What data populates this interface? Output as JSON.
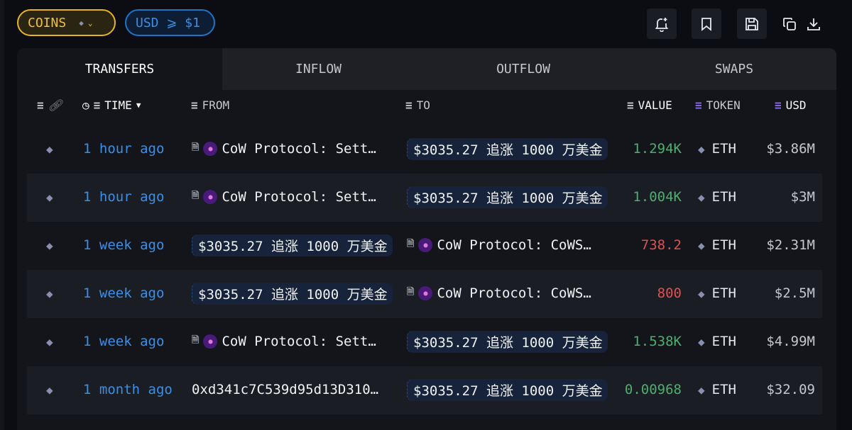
{
  "filters": {
    "coins_label": "COINS",
    "usd_label": "USD ⩾ $1"
  },
  "toolbar": {
    "icons": [
      "bell-plus-icon",
      "bookmark-icon",
      "save-icon",
      "copy-icon",
      "download-icon"
    ]
  },
  "tabs": [
    "TRANSFERS",
    "INFLOW",
    "OUTFLOW",
    "SWAPS"
  ],
  "columns": {
    "time": "TIME",
    "from": "FROM",
    "to": "TO",
    "value": "VALUE",
    "token": "TOKEN",
    "usd": "USD"
  },
  "colors": {
    "coins": "#f0c03a",
    "usd": "#3b8fe6",
    "positive": "#4caf6e",
    "negative": "#e05050",
    "filter_active": "#8b6cf0"
  },
  "rows": [
    {
      "time": "1 hour ago",
      "from": "CoW Protocol: Sett…",
      "from_type": "entity",
      "to": "$3035.27 追涨 1000 万美金",
      "to_type": "tag",
      "value": "1.294K",
      "dir": "pos",
      "token": "ETH",
      "usd": "$3.86M"
    },
    {
      "time": "1 hour ago",
      "from": "CoW Protocol: Sett…",
      "from_type": "entity",
      "to": "$3035.27 追涨 1000 万美金",
      "to_type": "tag",
      "value": "1.004K",
      "dir": "pos",
      "token": "ETH",
      "usd": "$3M"
    },
    {
      "time": "1 week ago",
      "from": "$3035.27 追涨 1000 万美金",
      "from_type": "tag",
      "to": "CoW Protocol: CoWS…",
      "to_type": "entity",
      "value": "738.2",
      "dir": "neg",
      "token": "ETH",
      "usd": "$2.31M"
    },
    {
      "time": "1 week ago",
      "from": "$3035.27 追涨 1000 万美金",
      "from_type": "tag",
      "to": "CoW Protocol: CoWS…",
      "to_type": "entity",
      "value": "800",
      "dir": "neg",
      "token": "ETH",
      "usd": "$2.5M"
    },
    {
      "time": "1 week ago",
      "from": "CoW Protocol: Sett…",
      "from_type": "entity",
      "to": "$3035.27 追涨 1000 万美金",
      "to_type": "tag",
      "value": "1.538K",
      "dir": "pos",
      "token": "ETH",
      "usd": "$4.99M"
    },
    {
      "time": "1 month ago",
      "from": "0xd341c7C539d95d13D310…",
      "from_type": "address",
      "to": "$3035.27 追涨 1000 万美金",
      "to_type": "tag",
      "value": "0.00968",
      "dir": "pos",
      "token": "ETH",
      "usd": "$32.09"
    }
  ]
}
